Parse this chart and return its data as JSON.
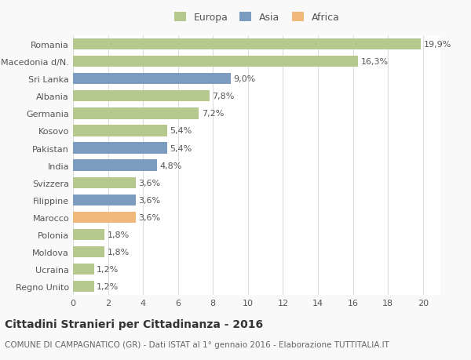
{
  "countries": [
    "Romania",
    "Macedonia d/N.",
    "Sri Lanka",
    "Albania",
    "Germania",
    "Kosovo",
    "Pakistan",
    "India",
    "Svizzera",
    "Filippine",
    "Marocco",
    "Polonia",
    "Moldova",
    "Ucraina",
    "Regno Unito"
  ],
  "values": [
    19.9,
    16.3,
    9.0,
    7.8,
    7.2,
    5.4,
    5.4,
    4.8,
    3.6,
    3.6,
    3.6,
    1.8,
    1.8,
    1.2,
    1.2
  ],
  "labels": [
    "19,9%",
    "16,3%",
    "9,0%",
    "7,8%",
    "7,2%",
    "5,4%",
    "5,4%",
    "4,8%",
    "3,6%",
    "3,6%",
    "3,6%",
    "1,8%",
    "1,8%",
    "1,2%",
    "1,2%"
  ],
  "continents": [
    "Europa",
    "Europa",
    "Asia",
    "Europa",
    "Europa",
    "Europa",
    "Asia",
    "Asia",
    "Europa",
    "Asia",
    "Africa",
    "Europa",
    "Europa",
    "Europa",
    "Europa"
  ],
  "colors": {
    "Europa": "#b5c98e",
    "Asia": "#7b9bbf",
    "Africa": "#f0b87b"
  },
  "legend_labels": [
    "Europa",
    "Asia",
    "Africa"
  ],
  "xlim": [
    0,
    21
  ],
  "xticks": [
    0,
    2,
    4,
    6,
    8,
    10,
    12,
    14,
    16,
    18,
    20
  ],
  "title": "Cittadini Stranieri per Cittadinanza - 2016",
  "subtitle": "COMUNE DI CAMPAGNATICO (GR) - Dati ISTAT al 1° gennaio 2016 - Elaborazione TUTTITALIA.IT",
  "bg_color": "#f9f9f9",
  "bar_bg_color": "#ffffff",
  "grid_color": "#dddddd",
  "title_fontsize": 10,
  "subtitle_fontsize": 7.5,
  "label_fontsize": 8,
  "tick_fontsize": 8
}
